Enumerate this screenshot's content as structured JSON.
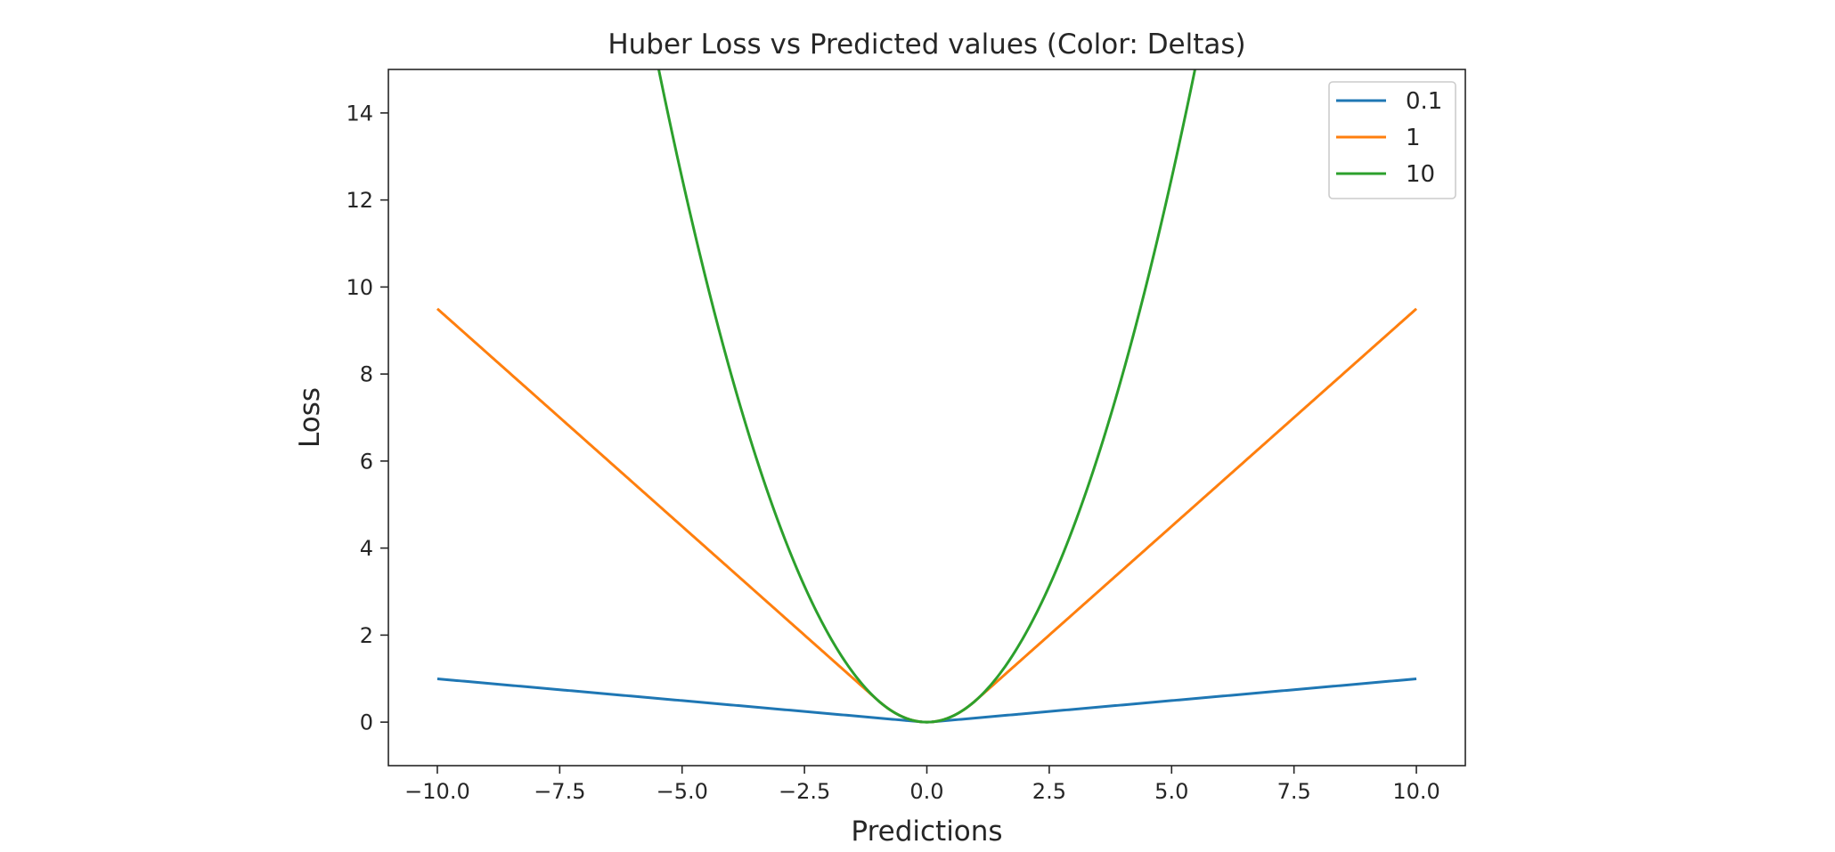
{
  "chart_data": {
    "type": "line",
    "title": "Huber Loss vs Predicted values (Color: Deltas)",
    "xlabel": "Predictions",
    "ylabel": "Loss",
    "xlim": [
      -11,
      11
    ],
    "ylim": [
      -1,
      15
    ],
    "xticks": [
      -10.0,
      -7.5,
      -5.0,
      -2.5,
      0.0,
      2.5,
      5.0,
      7.5,
      10.0
    ],
    "xtick_labels": [
      "−10.0",
      "−7.5",
      "−5.0",
      "−2.5",
      "0.0",
      "2.5",
      "5.0",
      "7.5",
      "10.0"
    ],
    "yticks": [
      0,
      2,
      4,
      6,
      8,
      10,
      12,
      14
    ],
    "ytick_labels": [
      "0",
      "2",
      "4",
      "6",
      "8",
      "10",
      "12",
      "14"
    ],
    "grid": false,
    "legend_position": "top-right",
    "x_range": [
      -10,
      10
    ],
    "loss_function": "huber",
    "series": [
      {
        "name": "0.1",
        "delta": 0.1,
        "color": "#1f77b4"
      },
      {
        "name": "1",
        "delta": 1,
        "color": "#ff7f0e"
      },
      {
        "name": "10",
        "delta": 10,
        "color": "#2ca02c"
      }
    ]
  }
}
